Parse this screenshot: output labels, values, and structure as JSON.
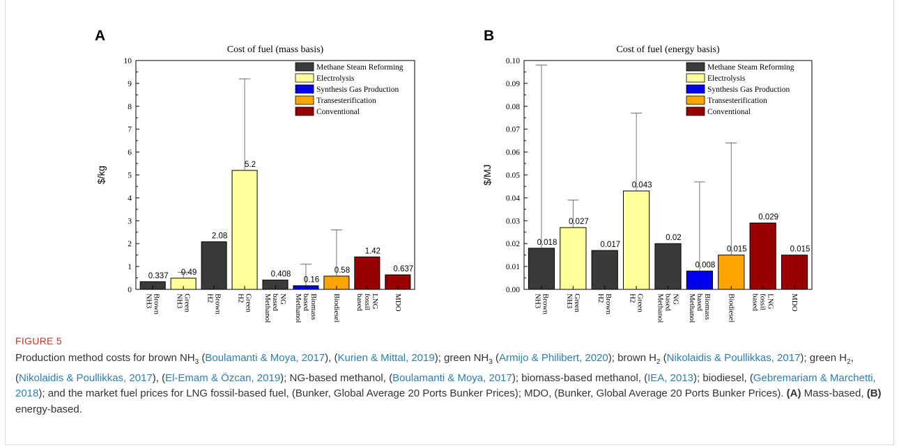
{
  "chart_data": [
    {
      "panel_letter": "A",
      "type": "bar",
      "title": "Cost of fuel (mass basis)",
      "ylabel": "$/kg",
      "xlabel": "",
      "ylim": [
        0,
        10
      ],
      "yticks": [
        "0",
        "1",
        "2",
        "3",
        "4",
        "5",
        "6",
        "7",
        "8",
        "9",
        "10"
      ],
      "categories": [
        [
          "Brown",
          "NH3"
        ],
        [
          "Green",
          "NH3"
        ],
        [
          "Brown",
          "H2"
        ],
        [
          "Green",
          "H2"
        ],
        [
          "NG",
          "based",
          "Methanol"
        ],
        [
          "Biomass",
          "based",
          "Methanol"
        ],
        [
          "Biodiesel"
        ],
        [
          "LNG",
          "fossil",
          "based"
        ],
        [
          "MDO"
        ]
      ],
      "values": [
        0.337,
        0.49,
        2.08,
        5.2,
        0.408,
        0.16,
        0.58,
        1.42,
        0.637
      ],
      "value_labels": [
        "0.337",
        "0.49",
        "2.08",
        "5.2",
        "0.408",
        "0.16",
        "0.58",
        "1.42",
        "0.637"
      ],
      "error_upper": [
        null,
        0.75,
        null,
        9.2,
        null,
        1.1,
        2.6,
        null,
        null
      ],
      "group": [
        "Methane Steam Reforming",
        "Electrolysis",
        "Methane Steam Reforming",
        "Electrolysis",
        "Methane Steam Reforming",
        "Synthesis Gas Production",
        "Transesterification",
        "Conventional",
        "Conventional"
      ],
      "legend": [
        {
          "name": "Methane Steam Reforming",
          "color": "#3a3a3a"
        },
        {
          "name": "Electrolysis",
          "color": "#ffff99"
        },
        {
          "name": "Synthesis Gas Production",
          "color": "#0000ee"
        },
        {
          "name": "Transesterification",
          "color": "#ffa500"
        },
        {
          "name": "Conventional",
          "color": "#990000"
        }
      ],
      "legend_position": "top-right",
      "grid": false
    },
    {
      "panel_letter": "B",
      "type": "bar",
      "title": "Cost of fuel (energy basis)",
      "ylabel": "$/MJ",
      "xlabel": "",
      "ylim": [
        0,
        0.1
      ],
      "yticks": [
        "0.00",
        "0.01",
        "0.02",
        "0.03",
        "0.04",
        "0.05",
        "0.06",
        "0.07",
        "0.08",
        "0.09",
        "0.10"
      ],
      "categories": [
        [
          "Brown",
          "NH3"
        ],
        [
          "Green",
          "NH3"
        ],
        [
          "Brown",
          "H2"
        ],
        [
          "Green",
          "H2"
        ],
        [
          "NG",
          "based",
          "Methanol"
        ],
        [
          "Biomass",
          "based",
          "Methanol"
        ],
        [
          "Biodiesel"
        ],
        [
          "LNG",
          "fossil",
          "based"
        ],
        [
          "MDO"
        ]
      ],
      "values": [
        0.018,
        0.027,
        0.017,
        0.043,
        0.02,
        0.008,
        0.015,
        0.029,
        0.015
      ],
      "value_labels": [
        "0.018",
        "0.027",
        "0.017",
        "0.043",
        "0.02",
        "0.008",
        "0.015",
        "0.029",
        "0.015"
      ],
      "error_upper": [
        0.098,
        0.039,
        null,
        0.077,
        null,
        0.047,
        0.064,
        null,
        null
      ],
      "group": [
        "Methane Steam Reforming",
        "Electrolysis",
        "Methane Steam Reforming",
        "Electrolysis",
        "Methane Steam Reforming",
        "Synthesis Gas Production",
        "Transesterification",
        "Conventional",
        "Conventional"
      ],
      "legend": [
        {
          "name": "Methane Steam Reforming",
          "color": "#3a3a3a"
        },
        {
          "name": "Electrolysis",
          "color": "#ffff99"
        },
        {
          "name": "Synthesis Gas Production",
          "color": "#0000ee"
        },
        {
          "name": "Transesterification",
          "color": "#ffa500"
        },
        {
          "name": "Conventional",
          "color": "#990000"
        }
      ],
      "legend_position": "top-right",
      "grid": false
    }
  ],
  "caption": {
    "label": "FIGURE 5",
    "segments": [
      {
        "t": "Production method costs for brown NH"
      },
      {
        "t": "3",
        "sub": true
      },
      {
        "t": " ("
      },
      {
        "t": "Boulamanti & Moya, 2017",
        "ref": true
      },
      {
        "t": "), ("
      },
      {
        "t": "Kurien & Mittal, 2019",
        "ref": true
      },
      {
        "t": "); green NH"
      },
      {
        "t": "3",
        "sub": true
      },
      {
        "t": " ("
      },
      {
        "t": "Armijo & Philibert, 2020",
        "ref": true
      },
      {
        "t": "); brown H"
      },
      {
        "t": "2",
        "sub": true
      },
      {
        "t": " ("
      },
      {
        "t": "Nikolaidis & Poullikkas, 2017",
        "ref": true
      },
      {
        "t": "); green H"
      },
      {
        "t": "2",
        "sub": true
      },
      {
        "t": ", ("
      },
      {
        "t": "Nikolaidis & Poullikkas, 2017",
        "ref": true
      },
      {
        "t": "), ("
      },
      {
        "t": "El-Emam & Özcan, 2019",
        "ref": true
      },
      {
        "t": "); NG-based methanol, ("
      },
      {
        "t": "Boulamanti & Moya, 2017",
        "ref": true
      },
      {
        "t": "); biomass-based methanol, ("
      },
      {
        "t": "IEA, 2013",
        "ref": true
      },
      {
        "t": "); biodiesel, ("
      },
      {
        "t": "Gebremariam & Marchetti, 2018",
        "ref": true
      },
      {
        "t": "); and the market fuel prices for LNG fossil-based fuel, (Bunker, Global Average 20 Ports Bunker Prices); MDO, (Bunker, Global Average 20 Ports Bunker Prices). "
      },
      {
        "t": "(A)",
        "bold": true
      },
      {
        "t": " Mass-based, "
      },
      {
        "t": "(B)",
        "bold": true
      },
      {
        "t": " energy-based."
      }
    ]
  }
}
